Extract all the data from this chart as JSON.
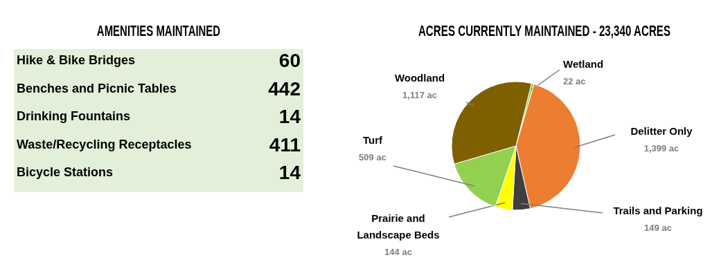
{
  "chart_data": [
    {
      "type": "other",
      "title": "AMENITIES MAINTAINED",
      "categories": [
        "Hike & Bike Bridges",
        "Benches and Picnic Tables",
        "Drinking Fountains",
        "Waste/Recycling Receptacles",
        "Bicycle Stations"
      ],
      "values": [
        60,
        442,
        14,
        411,
        14
      ],
      "data_labels": true,
      "color": "#e2efd9"
    },
    {
      "type": "pie",
      "title": "ACRES CURRENTLY MAINTAINED - 23,340 ACRES",
      "categories": [
        "Wetland",
        "Delitter Only",
        "Trails and Parking",
        "Prairie and Landscape Beds",
        "Turf",
        "Woodland"
      ],
      "values": [
        22,
        1399,
        149,
        144,
        509,
        1117
      ],
      "value_labels": [
        "22 ac",
        "1,399 ac",
        "149 ac",
        "144 ac",
        "509 ac",
        "1,117 ac"
      ],
      "colors": [
        "#92d050",
        "#ed7d31",
        "#3f3f3f",
        "#ffff00",
        "#92d050",
        "#7f6000"
      ]
    }
  ]
}
